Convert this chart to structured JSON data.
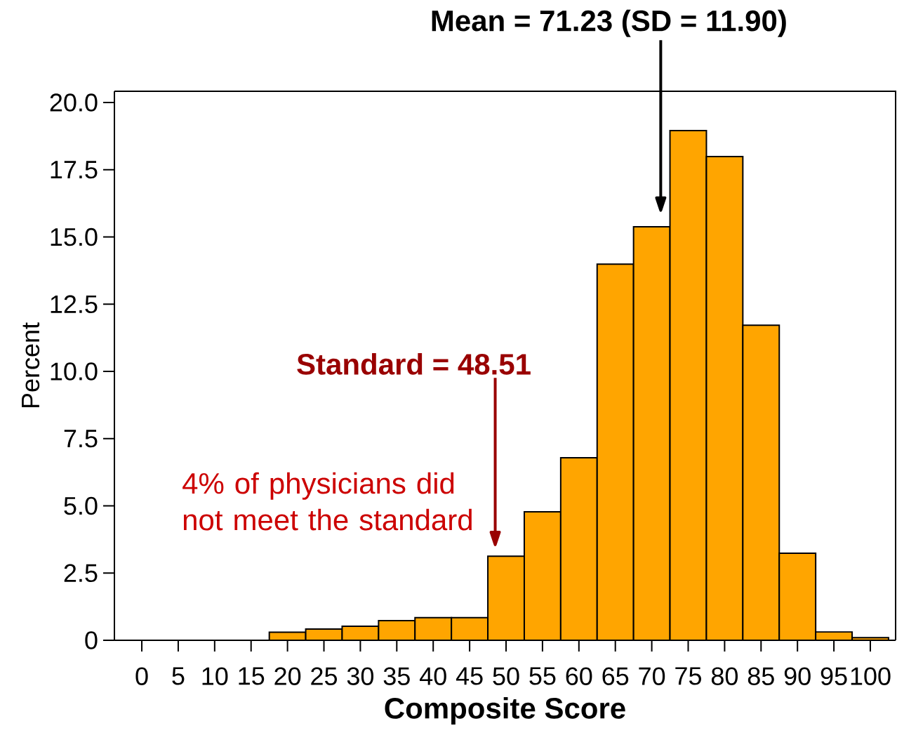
{
  "chart_data": {
    "type": "histogram",
    "xlabel": "Composite Score",
    "ylabel": "Percent",
    "color": "#ffa500",
    "bins": [
      17.5,
      22.5,
      27.5,
      32.5,
      37.5,
      42.5,
      47.5,
      52.5,
      57.5,
      62.5,
      67.5,
      72.5,
      77.5,
      82.5,
      87.5,
      92.5,
      97.5,
      102.5
    ],
    "values": [
      0.3,
      0.42,
      0.52,
      0.73,
      0.84,
      0.84,
      3.13,
      4.78,
      6.79,
      13.99,
      15.38,
      18.96,
      17.99,
      11.72,
      3.24,
      0.31,
      0.1
    ],
    "xlim": [
      -3.76,
      103.47
    ],
    "xticks": [
      0,
      5,
      10,
      15,
      20,
      25,
      30,
      35,
      40,
      45,
      50,
      55,
      60,
      65,
      70,
      75,
      80,
      85,
      90,
      95,
      100
    ],
    "ylim": [
      0,
      20.42
    ],
    "yticks": [
      0,
      {
        "value": 2.5,
        "label": "2.5"
      },
      {
        "value": 5,
        "label": "5.0"
      },
      {
        "value": 7.5,
        "label": "7.5"
      },
      {
        "value": 10,
        "label": "10.0"
      },
      {
        "value": 12.5,
        "label": "12.5"
      },
      {
        "value": 15,
        "label": "15.0"
      },
      {
        "value": 17.5,
        "label": "17.5"
      },
      {
        "value": 20,
        "label": "20.0"
      }
    ],
    "ref_lines": [
      {
        "axis": "x",
        "value": 71.23,
        "label": "Mean = 71.23 (SD = 11.90)",
        "color": "#000000"
      },
      {
        "axis": "x",
        "value": 48.51,
        "label": "Standard = 48.51",
        "color": "#990000"
      }
    ],
    "annotations": [
      "4% of physicians did not meet the standard"
    ]
  }
}
